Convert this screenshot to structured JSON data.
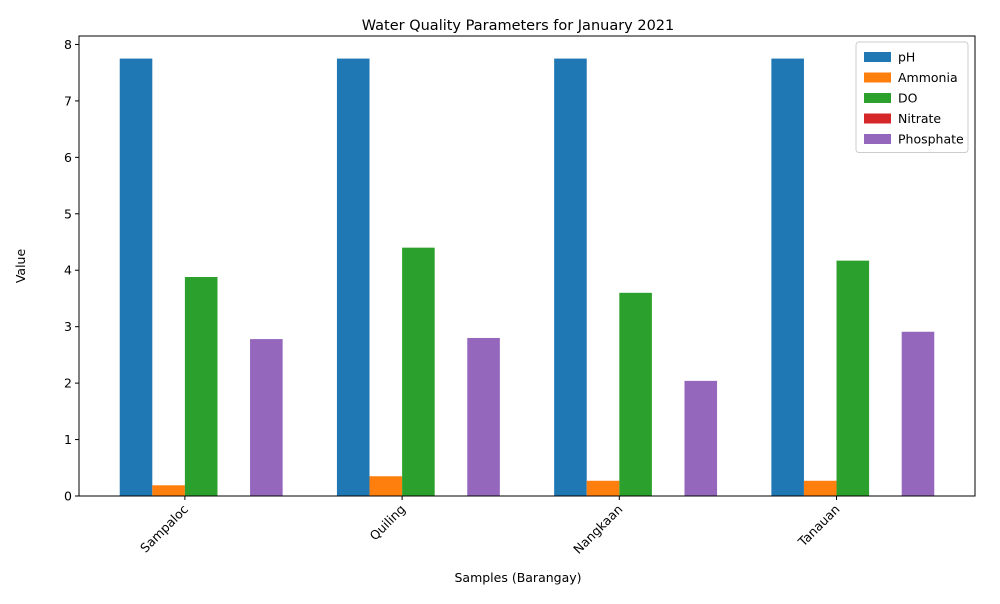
{
  "chart_data": {
    "type": "bar",
    "title": "Water Quality Parameters for January 2021",
    "xlabel": "Samples (Barangay)",
    "ylabel": "Value",
    "categories": [
      "Sampaloc",
      "Quiling",
      "Nangkaan",
      "Tanauan"
    ],
    "ylim": [
      0,
      8.15
    ],
    "yticks": [
      0,
      1,
      2,
      3,
      4,
      5,
      6,
      7,
      8
    ],
    "grid": false,
    "legend_position": "top-right",
    "series": [
      {
        "name": "pH",
        "color": "#1f77b4",
        "values": [
          7.75,
          7.75,
          7.75,
          7.75
        ]
      },
      {
        "name": "Ammonia",
        "color": "#ff7f0e",
        "values": [
          0.19,
          0.35,
          0.27,
          0.27
        ]
      },
      {
        "name": "DO",
        "color": "#2ca02c",
        "values": [
          3.88,
          4.4,
          3.6,
          4.17
        ]
      },
      {
        "name": "Nitrate",
        "color": "#d62728",
        "values": [
          0,
          0,
          0,
          0
        ]
      },
      {
        "name": "Phosphate",
        "color": "#9467bd",
        "values": [
          2.78,
          2.8,
          2.04,
          2.91
        ]
      }
    ]
  }
}
